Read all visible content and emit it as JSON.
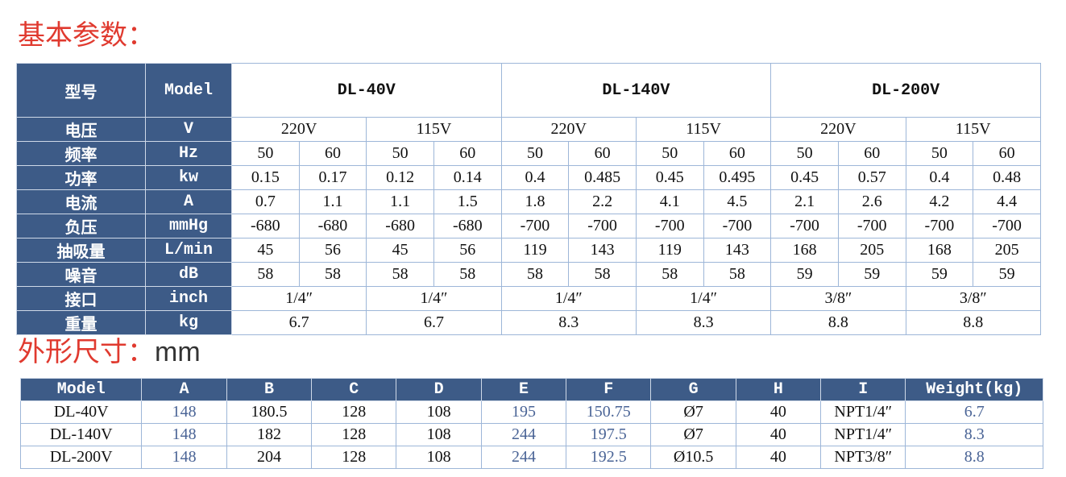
{
  "title1": "基本参数：",
  "table1": {
    "header": [
      "型号",
      "Model",
      "DL-40V",
      "DL-140V",
      "DL-200V"
    ],
    "rows": [
      [
        "电压",
        "V",
        "220V",
        "115V",
        "220V",
        "115V",
        "220V",
        "115V"
      ],
      [
        "频率",
        "Hz",
        "50",
        "60",
        "50",
        "60",
        "50",
        "60",
        "50",
        "60",
        "50",
        "60",
        "50",
        "60"
      ],
      [
        "功率",
        "kw",
        "0.15",
        "0.17",
        "0.12",
        "0.14",
        "0.4",
        "0.485",
        "0.45",
        "0.495",
        "0.45",
        "0.57",
        "0.4",
        "0.48"
      ],
      [
        "电流",
        "A",
        "0.7",
        "1.1",
        "1.1",
        "1.5",
        "1.8",
        "2.2",
        "4.1",
        "4.5",
        "2.1",
        "2.6",
        "4.2",
        "4.4"
      ],
      [
        "负压",
        "mmHg",
        "-680",
        "-680",
        "-680",
        "-680",
        "-700",
        "-700",
        "-700",
        "-700",
        "-700",
        "-700",
        "-700",
        "-700"
      ],
      [
        "抽吸量",
        "L/min",
        "45",
        "56",
        "45",
        "56",
        "119",
        "143",
        "119",
        "143",
        "168",
        "205",
        "168",
        "205"
      ],
      [
        "噪音",
        "dB",
        "58",
        "58",
        "58",
        "58",
        "58",
        "58",
        "58",
        "58",
        "59",
        "59",
        "59",
        "59"
      ],
      [
        "接口",
        "inch",
        "1/4″",
        "1/4″",
        "1/4″",
        "1/4″",
        "3/8″",
        "3/8″"
      ],
      [
        "重量",
        "kg",
        "6.7",
        "6.7",
        "8.3",
        "8.3",
        "8.8",
        "8.8"
      ]
    ]
  },
  "title2": "外形尺寸：",
  "unit2": "mm",
  "table2": {
    "header": [
      "Model",
      "A",
      "B",
      "C",
      "D",
      "E",
      "F",
      "G",
      "H",
      "I",
      "Weight(kg)"
    ],
    "rows": [
      [
        "DL-40V",
        "148",
        "180.5",
        "128",
        "108",
        "195",
        "150.75",
        "Ø7",
        "40",
        "NPT1/4″",
        "6.7"
      ],
      [
        "DL-140V",
        "148",
        "182",
        "128",
        "108",
        "244",
        "197.5",
        "Ø7",
        "40",
        "NPT1/4″",
        "8.3"
      ],
      [
        "DL-200V",
        "148",
        "204",
        "128",
        "108",
        "244",
        "192.5",
        "Ø10.5",
        "40",
        "NPT3/8″",
        "8.8"
      ]
    ]
  }
}
